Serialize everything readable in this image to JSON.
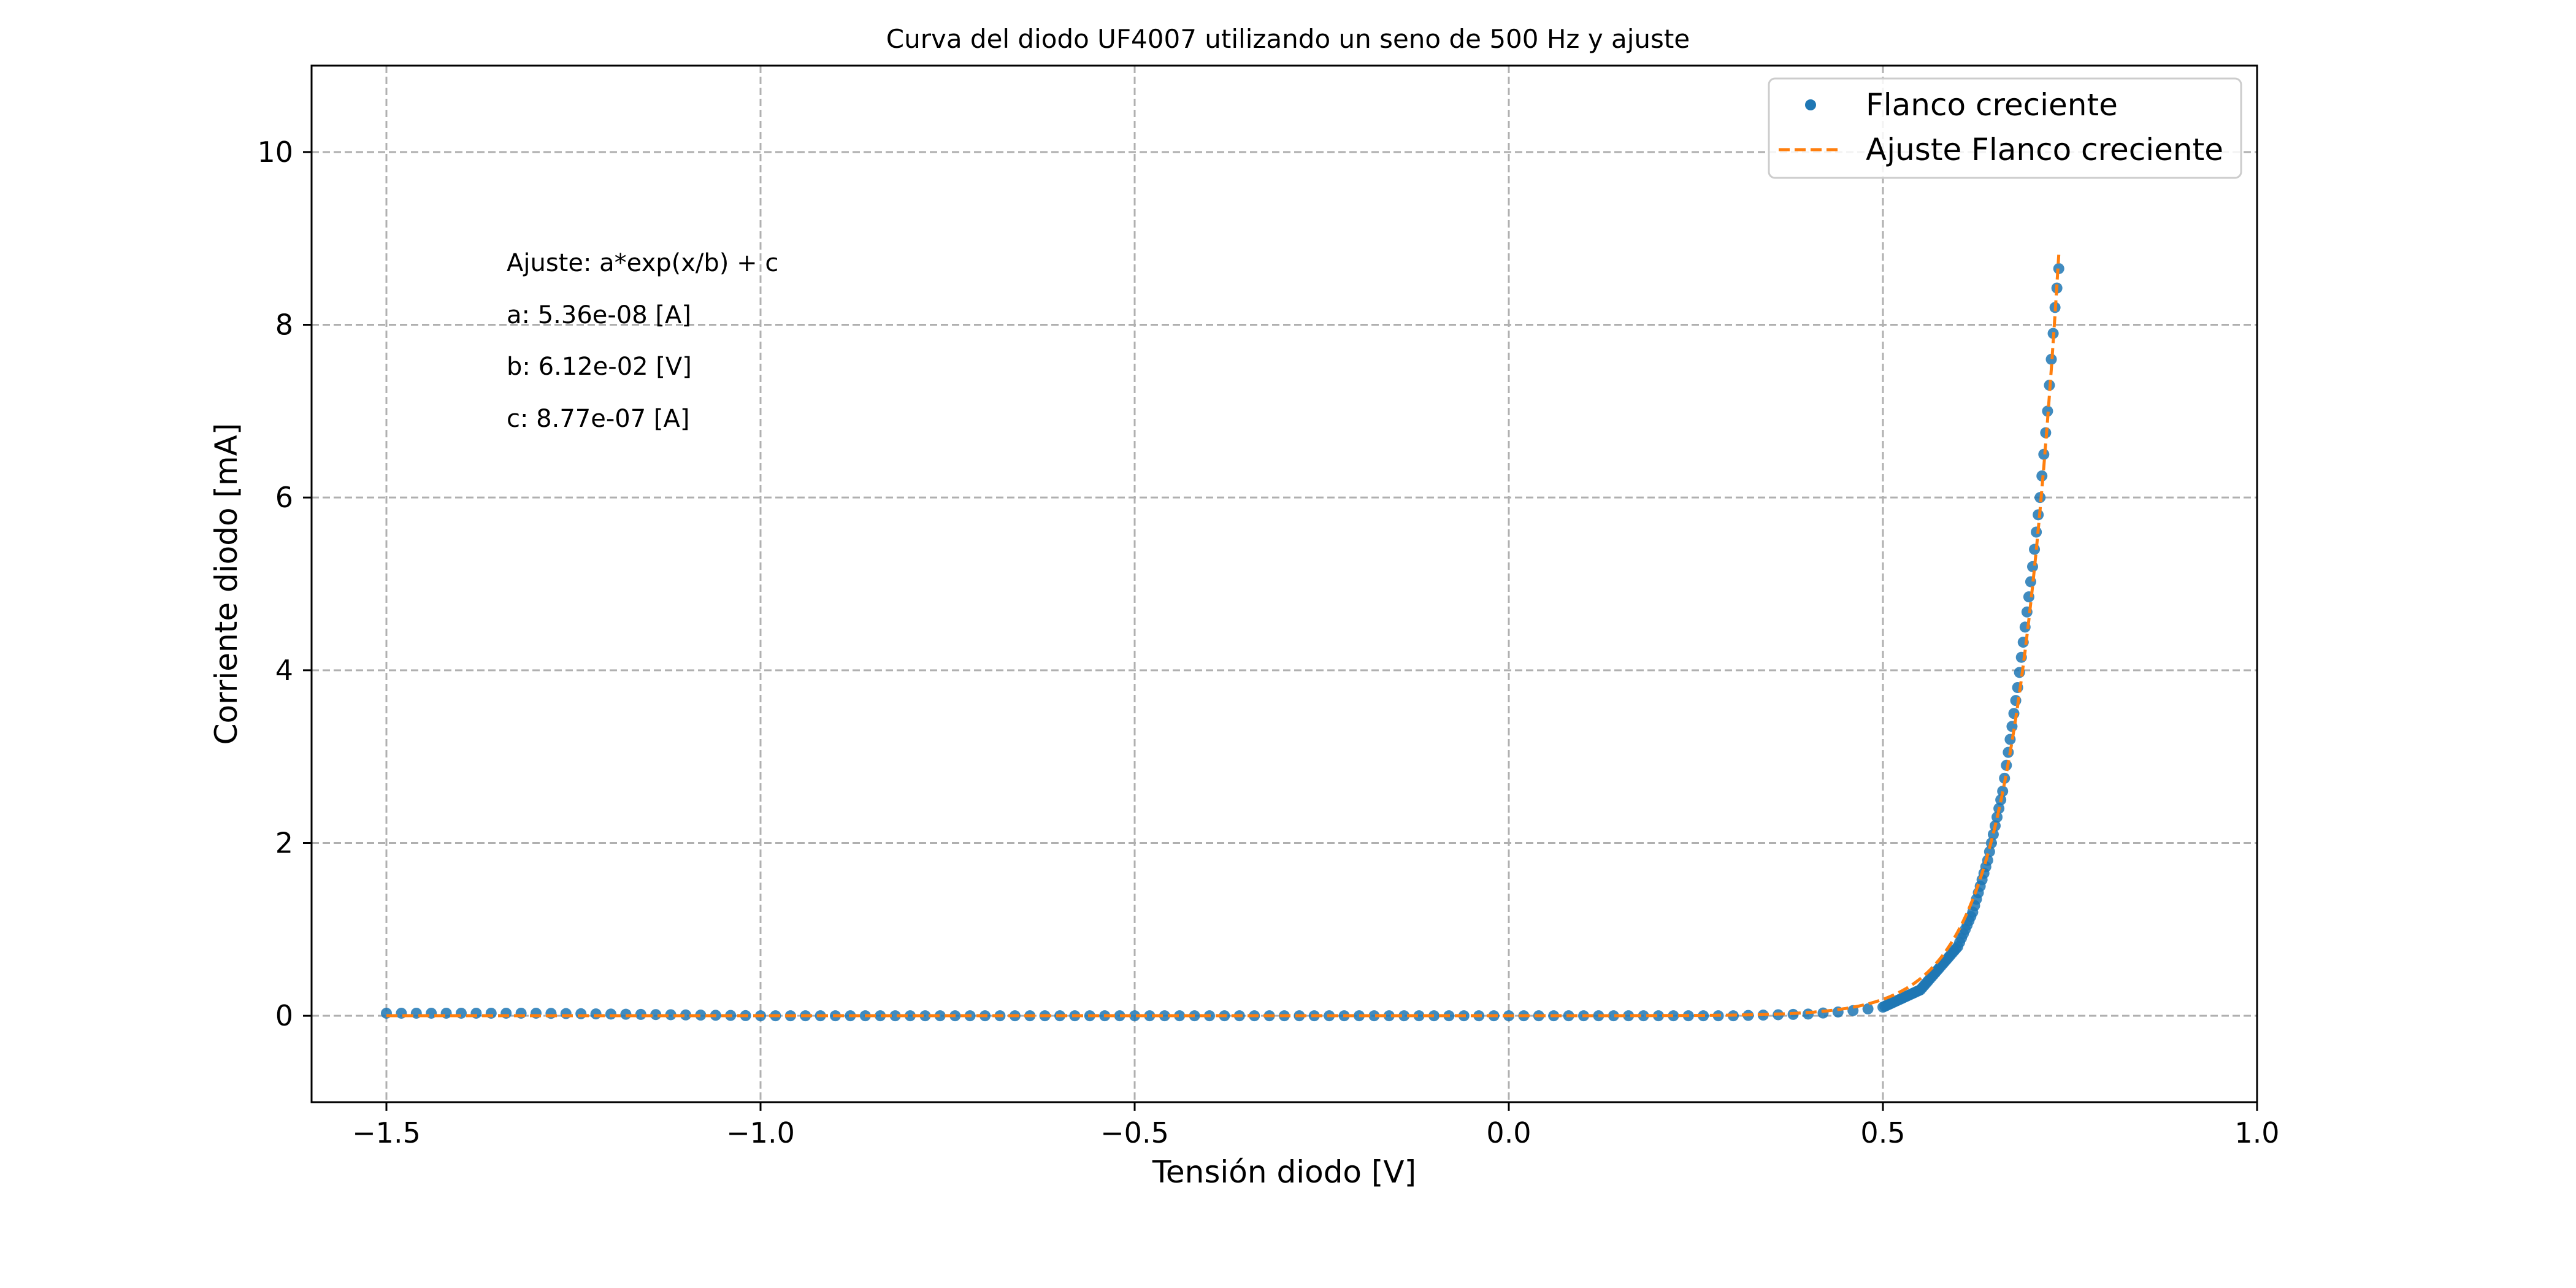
{
  "chart_data": {
    "type": "scatter",
    "title": "Curva del diodo UF4007 utilizando un seno de 500 Hz y ajuste",
    "xlabel": "Tensión diodo [V]",
    "ylabel": "Corriente diodo [mA]",
    "xlim": [
      -1.6,
      1.0
    ],
    "ylim": [
      -1.0,
      11.0
    ],
    "x_ticks": [
      -1.5,
      -1.0,
      -0.5,
      0.0,
      0.5,
      1.0
    ],
    "x_tick_labels": [
      "−1.5",
      "−1.0",
      "−0.5",
      "0.0",
      "0.5",
      "1.0"
    ],
    "y_ticks": [
      0,
      2,
      4,
      6,
      8,
      10
    ],
    "y_tick_labels": [
      "0",
      "2",
      "4",
      "6",
      "8",
      "10"
    ],
    "grid": true,
    "legend_position": "top-right",
    "series": [
      {
        "name": "Flanco creciente",
        "style": "markers",
        "color": "#1f77b4",
        "x_range": [
          -1.5,
          0.735
        ],
        "points": [
          [
            -1.5,
            0.03
          ],
          [
            -1.3,
            0.03
          ],
          [
            -1.0,
            0.0
          ],
          [
            -0.5,
            0.0
          ],
          [
            0.0,
            0.0
          ],
          [
            0.3,
            0.0
          ],
          [
            0.4,
            0.02
          ],
          [
            0.45,
            0.05
          ],
          [
            0.5,
            0.1
          ],
          [
            0.55,
            0.3
          ],
          [
            0.6,
            0.8
          ],
          [
            0.62,
            1.2
          ],
          [
            0.64,
            1.8
          ],
          [
            0.66,
            2.6
          ],
          [
            0.68,
            3.8
          ],
          [
            0.7,
            5.2
          ],
          [
            0.71,
            6.0
          ],
          [
            0.72,
            7.0
          ],
          [
            0.73,
            8.2
          ],
          [
            0.735,
            8.65
          ]
        ]
      },
      {
        "name": "Ajuste Flanco creciente",
        "style": "dashed-line",
        "color": "#ff7f0e",
        "model": "a*exp(x/b) + c",
        "a": 5.36e-08,
        "b": 0.0612,
        "c": 8.77e-07,
        "x_range": [
          -1.5,
          0.735
        ]
      }
    ],
    "annotations": [
      "Ajuste: a*exp(x/b) + c",
      "a: 5.36e-08 [A]",
      "b: 6.12e-02 [V]",
      "c: 8.77e-07 [A]"
    ]
  }
}
